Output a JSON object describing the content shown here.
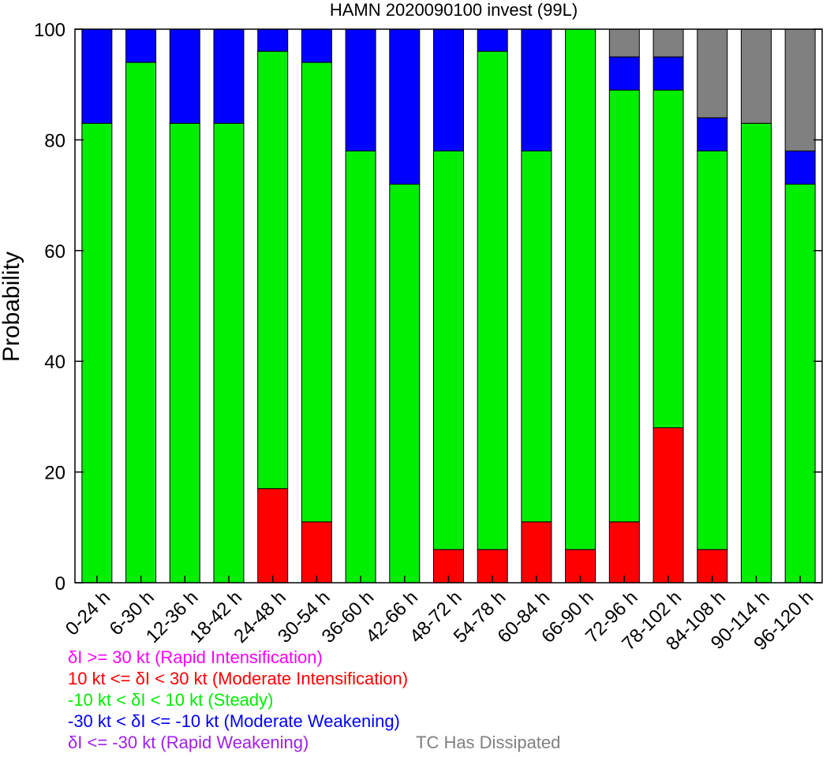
{
  "chart_data": {
    "type": "bar",
    "stacked": true,
    "title": "HAMN 2020090100 invest (99L)",
    "xlabel": "",
    "ylabel": "Probability",
    "ylim": [
      0,
      100
    ],
    "yticks": [
      0,
      20,
      40,
      60,
      80,
      100
    ],
    "grid": false,
    "categories": [
      "0-24 h",
      "6-30 h",
      "12-36 h",
      "18-42 h",
      "24-48 h",
      "30-54 h",
      "36-60 h",
      "42-66 h",
      "48-72 h",
      "54-78 h",
      "60-84 h",
      "66-90 h",
      "72-96 h",
      "78-102 h",
      "84-108 h",
      "90-114 h",
      "96-120 h"
    ],
    "series": [
      {
        "key": "rapid_intensification",
        "color": "#ff00ff",
        "values": [
          0,
          0,
          0,
          0,
          0,
          0,
          0,
          0,
          0,
          0,
          0,
          0,
          0,
          0,
          0,
          0,
          0
        ]
      },
      {
        "key": "moderate_intensification",
        "color": "#ff0000",
        "values": [
          0,
          0,
          0,
          0,
          17,
          11,
          0,
          0,
          6,
          6,
          11,
          6,
          11,
          28,
          6,
          0,
          0
        ]
      },
      {
        "key": "steady",
        "color": "#00ee00",
        "values": [
          83,
          94,
          83,
          83,
          79,
          83,
          78,
          72,
          72,
          90,
          67,
          94,
          78,
          61,
          72,
          83,
          72
        ]
      },
      {
        "key": "moderate_weakening",
        "color": "#0000ff",
        "values": [
          17,
          6,
          17,
          17,
          4,
          6,
          22,
          28,
          22,
          4,
          22,
          0,
          6,
          6,
          6,
          0,
          6
        ]
      },
      {
        "key": "rapid_weakening",
        "color": "#a020f0",
        "values": [
          0,
          0,
          0,
          0,
          0,
          0,
          0,
          0,
          0,
          0,
          0,
          0,
          0,
          0,
          0,
          0,
          0
        ]
      },
      {
        "key": "dissipated",
        "color": "#808080",
        "values": [
          0,
          0,
          0,
          0,
          0,
          0,
          0,
          0,
          0,
          0,
          0,
          0,
          5,
          5,
          16,
          17,
          22
        ]
      }
    ],
    "legend_entries": [
      {
        "label": "δI >= 30 kt (Rapid Intensification)",
        "color": "#ff00ff"
      },
      {
        "label": "10 kt <= δI < 30 kt (Moderate Intensification)",
        "color": "#ff0000"
      },
      {
        "label": "-10 kt < δI < 10 kt (Steady)",
        "color": "#00ee00"
      },
      {
        "label": "-30 kt < δI <= -10 kt (Moderate Weakening)",
        "color": "#0000ff"
      },
      {
        "label": "δI <= -30 kt (Rapid Weakening)",
        "color": "#a020f0"
      },
      {
        "label": "TC Has Dissipated",
        "color": "#808080"
      }
    ],
    "legend_placement": "bottom-left"
  }
}
